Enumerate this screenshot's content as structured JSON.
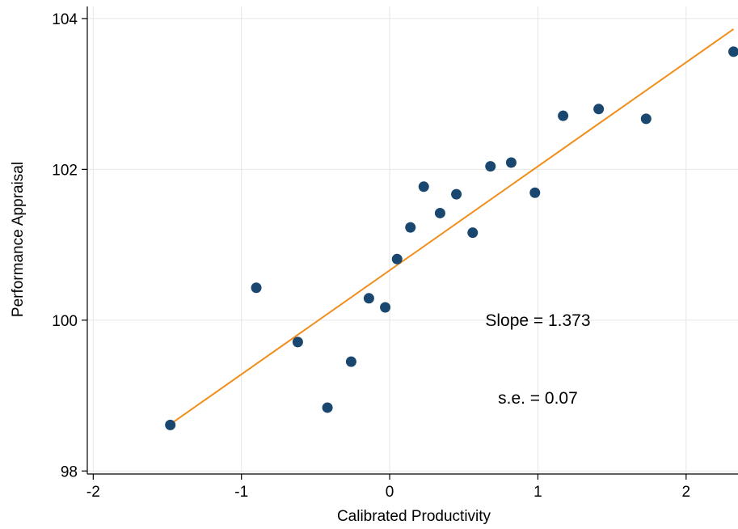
{
  "chart_data": {
    "type": "scatter",
    "xlabel": "Calibrated Productivity",
    "ylabel": "Performance Appraisal",
    "xlim": [
      -2.04,
      2.35
    ],
    "ylim": [
      97.96,
      104.16
    ],
    "xticks": [
      -2,
      -1,
      0,
      1,
      2
    ],
    "xtick_labels": [
      "-2",
      "-1",
      "0",
      "1",
      "2"
    ],
    "yticks": [
      98,
      100,
      102,
      104
    ],
    "ytick_labels": [
      "98",
      "100",
      "102",
      "104"
    ],
    "grid": true,
    "legend": "none",
    "series": [
      {
        "x": [
          -1.48,
          -0.9,
          -0.62,
          -0.42,
          -0.26,
          -0.14,
          -0.03,
          0.05,
          0.14,
          0.23,
          0.34,
          0.45,
          0.56,
          0.68,
          0.82,
          0.98,
          1.17,
          1.41,
          1.73,
          2.32
        ],
        "y": [
          98.61,
          100.43,
          99.71,
          98.84,
          99.45,
          100.29,
          100.17,
          100.81,
          101.23,
          101.77,
          101.42,
          101.67,
          101.16,
          102.04,
          102.09,
          101.69,
          102.71,
          102.8,
          102.67,
          103.56
        ]
      }
    ],
    "fit_line": {
      "x": [
        -1.48,
        2.32
      ],
      "y": [
        98.62,
        103.86
      ]
    },
    "annotations": [
      {
        "text": "Slope = 1.373",
        "x": 1.0,
        "y": 100.0
      },
      {
        "text": "s.e. = 0.07",
        "x": 1.0,
        "y": 98.97
      }
    ],
    "colors": {
      "points": "#1a476f",
      "fit_line": "#f28e1c",
      "grid": "#e6e6e6",
      "axis": "#000000"
    }
  }
}
